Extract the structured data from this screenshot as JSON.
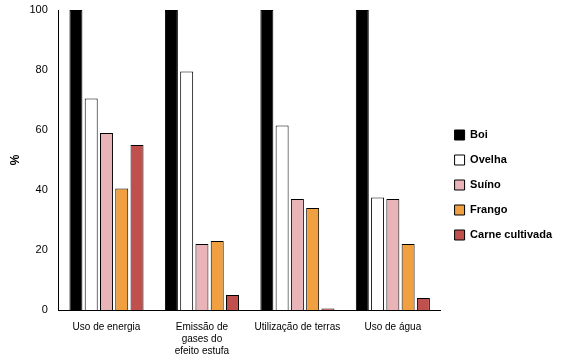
{
  "chart_data": {
    "type": "bar",
    "y_label": "%",
    "categories": [
      "Uso de energia",
      "Emissão de gases do efeito estufa",
      "Utilização de terras",
      "Uso de água"
    ],
    "series": [
      {
        "name": "Boi",
        "color": "#000000",
        "values": [
          100,
          100,
          100,
          100
        ]
      },
      {
        "name": "Ovelha",
        "color": "#ffffff",
        "values": [
          70.5,
          79.5,
          61.5,
          37.5
        ]
      },
      {
        "name": "Suíno",
        "color": "#e8b4b8",
        "values": [
          59,
          22,
          37,
          37
        ]
      },
      {
        "name": "Frango",
        "color": "#f0a040",
        "values": [
          40.5,
          23,
          34,
          22
        ]
      },
      {
        "name": "Carne cultivada",
        "color": "#c0504d",
        "values": [
          55,
          5,
          0.5,
          4
        ]
      }
    ],
    "ylim": [
      0,
      100
    ],
    "yticks": [
      0,
      20,
      40,
      60,
      80,
      100
    ],
    "grid": false,
    "legend": "right"
  }
}
